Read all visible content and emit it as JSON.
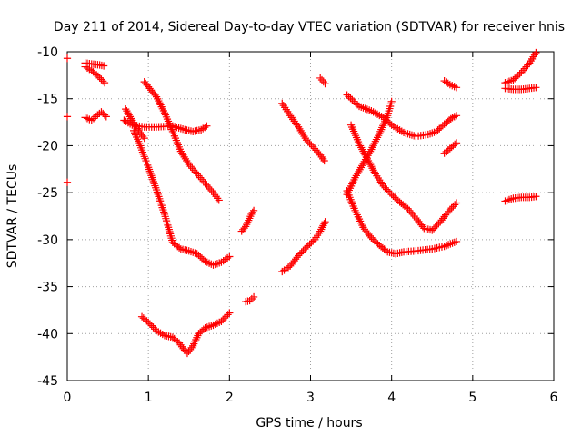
{
  "chart_data": {
    "type": "scatter",
    "title": "Day 211 of 2014, Sidereal Day-to-day VTEC variation (SDTVAR) for receiver hnis",
    "xlabel": "GPS time / hours",
    "ylabel": "SDTVAR / TECUs",
    "xlim": [
      0,
      6
    ],
    "ylim": [
      -45,
      -10
    ],
    "xticks": [
      0,
      1,
      2,
      3,
      4,
      5,
      6
    ],
    "yticks": [
      -10,
      -15,
      -20,
      -25,
      -30,
      -35,
      -40,
      -45
    ],
    "grid": true,
    "marker": "plus",
    "color": "#ff0000",
    "series": [
      {
        "x": [
          0.0,
          0.0,
          0.0
        ],
        "y": [
          -10.7,
          -16.9,
          -23.9
        ]
      },
      {
        "x": [
          0.22,
          0.3,
          0.4,
          0.45
        ],
        "y": [
          -11.2,
          -11.3,
          -11.4,
          -11.5
        ]
      },
      {
        "x": [
          0.22,
          0.3,
          0.38,
          0.46
        ],
        "y": [
          -11.6,
          -12.0,
          -12.6,
          -13.3
        ]
      },
      {
        "x": [
          0.22,
          0.3,
          0.35,
          0.42,
          0.48
        ],
        "y": [
          -17.0,
          -17.3,
          -16.9,
          -16.4,
          -16.9
        ]
      },
      {
        "x": [
          0.7,
          0.8,
          0.95,
          1.1,
          1.3,
          1.45,
          1.55,
          1.65,
          1.72
        ],
        "y": [
          -17.3,
          -17.8,
          -18.0,
          -18.0,
          -17.9,
          -18.3,
          -18.5,
          -18.3,
          -17.9
        ]
      },
      {
        "x": [
          0.72,
          0.8,
          0.88,
          0.95
        ],
        "y": [
          -16.1,
          -17.3,
          -18.4,
          -19.2
        ]
      },
      {
        "x": [
          0.95,
          1.1,
          1.2,
          1.3,
          1.4,
          1.5,
          1.6,
          1.7,
          1.8,
          1.87
        ],
        "y": [
          -13.2,
          -14.8,
          -16.5,
          -18.5,
          -20.6,
          -22.0,
          -23.0,
          -24.0,
          -25.0,
          -25.8
        ]
      },
      {
        "x": [
          0.82,
          0.9,
          1.0,
          1.1,
          1.2,
          1.3,
          1.4,
          1.5,
          1.6,
          1.7,
          1.8,
          1.9,
          2.0
        ],
        "y": [
          -18.4,
          -20.0,
          -22.3,
          -24.7,
          -27.3,
          -30.3,
          -31.0,
          -31.2,
          -31.5,
          -32.3,
          -32.7,
          -32.4,
          -31.8
        ]
      },
      {
        "x": [
          0.92,
          1.0,
          1.1,
          1.2,
          1.3,
          1.38,
          1.43,
          1.48,
          1.55,
          1.62,
          1.7,
          1.8,
          1.9,
          2.0
        ],
        "y": [
          -38.2,
          -38.8,
          -39.7,
          -40.2,
          -40.4,
          -41.0,
          -41.6,
          -42.1,
          -41.3,
          -40.0,
          -39.4,
          -39.1,
          -38.7,
          -37.8
        ]
      },
      {
        "x": [
          2.15,
          2.2,
          2.27,
          2.3
        ],
        "y": [
          -29.1,
          -28.6,
          -27.3,
          -26.9
        ]
      },
      {
        "x": [
          2.2,
          2.25,
          2.3
        ],
        "y": [
          -36.6,
          -36.5,
          -36.1
        ]
      },
      {
        "x": [
          2.65,
          2.75,
          2.85,
          2.95,
          3.05,
          3.12,
          3.17
        ],
        "y": [
          -15.5,
          -16.8,
          -18.0,
          -19.4,
          -20.3,
          -21.0,
          -21.6
        ]
      },
      {
        "x": [
          2.65,
          2.75,
          2.85,
          2.95,
          3.05,
          3.12,
          3.18
        ],
        "y": [
          -33.4,
          -32.8,
          -31.7,
          -30.8,
          -30.0,
          -29.1,
          -28.1
        ]
      },
      {
        "x": [
          3.12,
          3.18
        ],
        "y": [
          -12.8,
          -13.4
        ]
      },
      {
        "x": [
          3.45,
          3.6,
          3.75,
          3.9,
          4.0,
          4.15,
          4.3,
          4.45,
          4.55,
          4.65,
          4.75,
          4.8
        ],
        "y": [
          -14.6,
          -15.8,
          -16.3,
          -17.0,
          -17.8,
          -18.6,
          -19.0,
          -18.8,
          -18.5,
          -17.7,
          -17.0,
          -16.8
        ]
      },
      {
        "x": [
          3.5,
          3.6,
          3.7,
          3.8,
          3.9,
          4.0,
          4.1,
          4.2,
          4.3,
          4.4,
          4.5,
          4.6,
          4.7,
          4.8
        ],
        "y": [
          -17.8,
          -19.8,
          -21.4,
          -23.0,
          -24.3,
          -25.2,
          -26.0,
          -26.7,
          -27.7,
          -28.8,
          -29.0,
          -28.1,
          -27.0,
          -26.1
        ]
      },
      {
        "x": [
          3.45,
          3.55,
          3.65,
          3.75,
          3.85,
          3.95,
          4.0
        ],
        "y": [
          -25.2,
          -23.4,
          -21.9,
          -20.4,
          -18.7,
          -16.8,
          -15.3
        ]
      },
      {
        "x": [
          3.45,
          3.55,
          3.65,
          3.75,
          3.85,
          3.95,
          4.05,
          4.15,
          4.3,
          4.5,
          4.65,
          4.8
        ],
        "y": [
          -24.8,
          -26.9,
          -28.7,
          -29.8,
          -30.6,
          -31.3,
          -31.5,
          -31.3,
          -31.2,
          -31.0,
          -30.7,
          -30.2
        ]
      },
      {
        "x": [
          4.65,
          4.72,
          4.8
        ],
        "y": [
          -13.1,
          -13.5,
          -13.8
        ]
      },
      {
        "x": [
          4.65,
          4.72,
          4.8
        ],
        "y": [
          -20.8,
          -20.3,
          -19.7
        ]
      },
      {
        "x": [
          5.4,
          5.5,
          5.6,
          5.7,
          5.78
        ],
        "y": [
          -13.3,
          -13.0,
          -12.2,
          -11.2,
          -10.1
        ]
      },
      {
        "x": [
          5.4,
          5.5,
          5.6,
          5.7,
          5.78
        ],
        "y": [
          -13.9,
          -14.0,
          -14.0,
          -13.9,
          -13.8
        ]
      },
      {
        "x": [
          5.4,
          5.5,
          5.6,
          5.7,
          5.78
        ],
        "y": [
          -25.9,
          -25.6,
          -25.5,
          -25.5,
          -25.4
        ]
      }
    ]
  }
}
